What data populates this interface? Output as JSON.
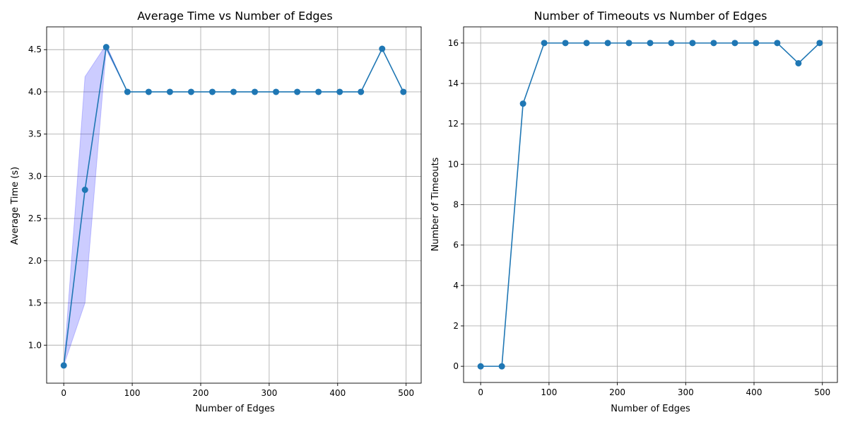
{
  "colors": {
    "series": "#1f77b4",
    "band": "#0000ff",
    "grid": "#b0b0b0"
  },
  "chart_data": [
    {
      "type": "line",
      "title": "Average Time vs Number of Edges",
      "xlabel": "Number of Edges",
      "ylabel": "Average Time (s)",
      "xlim": [
        -25,
        522
      ],
      "ylim": [
        0.55,
        4.77
      ],
      "xticks": [
        0,
        100,
        200,
        300,
        400,
        500
      ],
      "yticks": [
        1.0,
        1.5,
        2.0,
        2.5,
        3.0,
        3.5,
        4.0,
        4.5
      ],
      "grid": true,
      "x": [
        0,
        31,
        62,
        93,
        124,
        155,
        186,
        217,
        248,
        279,
        310,
        341,
        372,
        403,
        434,
        465,
        496
      ],
      "series": [
        {
          "values": [
            0.76,
            2.84,
            4.53,
            4.0,
            4.0,
            4.0,
            4.0,
            4.0,
            4.0,
            4.0,
            4.0,
            4.0,
            4.0,
            4.0,
            4.0,
            4.51,
            4.0
          ]
        }
      ],
      "band": {
        "lower": [
          0.76,
          1.5,
          4.5,
          4.0,
          4.0,
          4.0,
          4.0,
          4.0,
          4.0,
          4.0,
          4.0,
          4.0,
          4.0,
          4.0,
          4.0,
          4.51,
          4.0
        ],
        "upper": [
          0.76,
          4.18,
          4.56,
          4.0,
          4.0,
          4.0,
          4.0,
          4.0,
          4.0,
          4.0,
          4.0,
          4.0,
          4.0,
          4.0,
          4.0,
          4.51,
          4.0
        ]
      }
    },
    {
      "type": "line",
      "title": "Number of Timeouts vs Number of Edges",
      "xlabel": "Number of Edges",
      "ylabel": "Number of Timeouts",
      "xlim": [
        -25,
        522
      ],
      "ylim": [
        -0.8,
        16.8
      ],
      "xticks": [
        0,
        100,
        200,
        300,
        400,
        500
      ],
      "yticks": [
        0,
        2,
        4,
        6,
        8,
        10,
        12,
        14,
        16
      ],
      "grid": true,
      "x": [
        0,
        31,
        62,
        93,
        124,
        155,
        186,
        217,
        248,
        279,
        310,
        341,
        372,
        403,
        434,
        465,
        496
      ],
      "series": [
        {
          "values": [
            0,
            0,
            13,
            16,
            16,
            16,
            16,
            16,
            16,
            16,
            16,
            16,
            16,
            16,
            16,
            15,
            16
          ]
        }
      ]
    }
  ]
}
